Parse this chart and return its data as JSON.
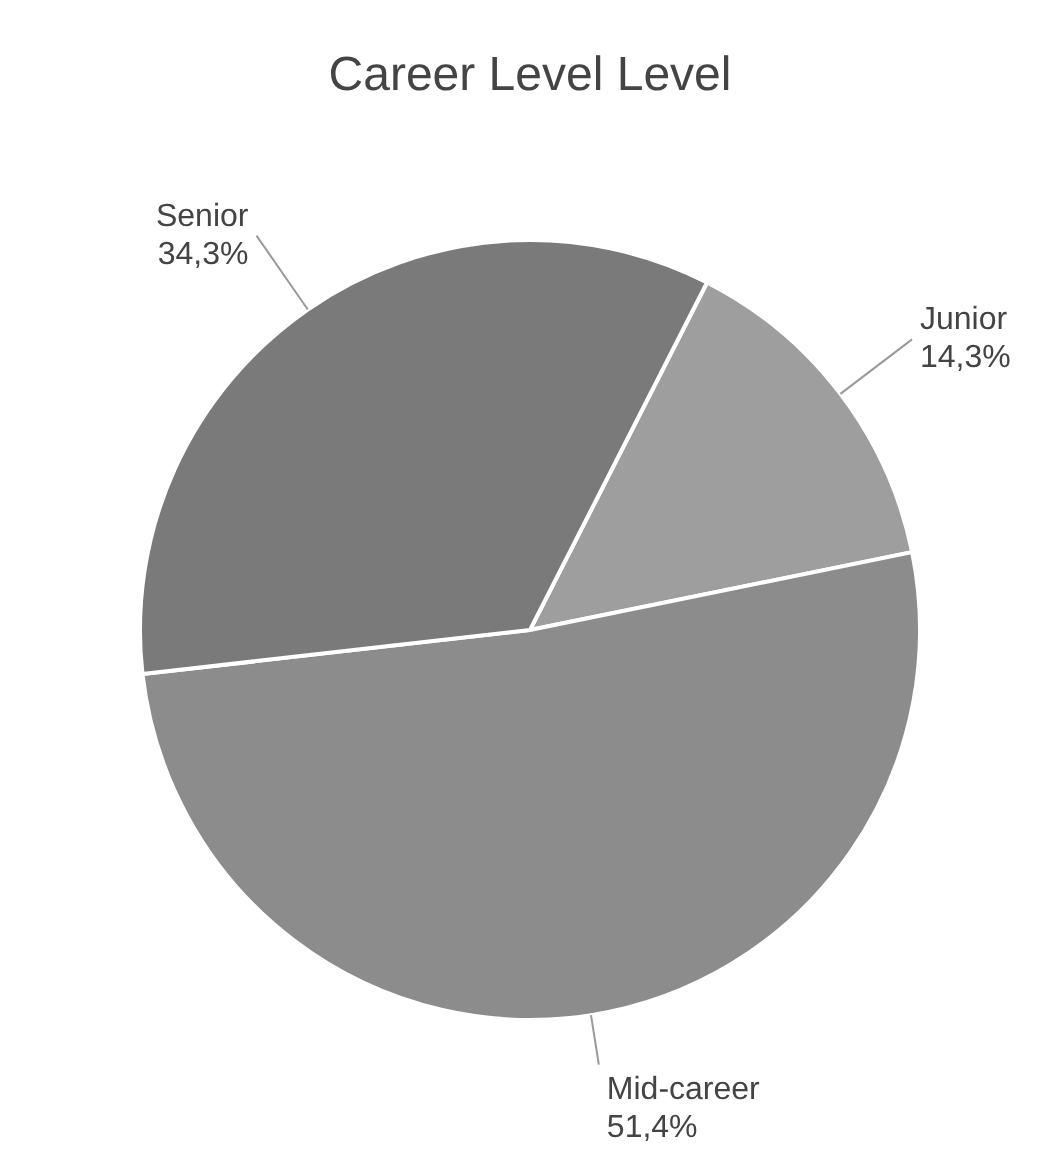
{
  "chart_data": {
    "type": "pie",
    "title": "Career Level Level",
    "categories": [
      "Junior",
      "Mid-career",
      "Senior"
    ],
    "values": [
      14.3,
      51.4,
      34.3
    ],
    "value_labels": [
      "14,3%",
      "51,4%",
      "34,3%"
    ],
    "colors": [
      "#9e9e9e",
      "#8c8c8c",
      "#7a7a7a"
    ]
  }
}
